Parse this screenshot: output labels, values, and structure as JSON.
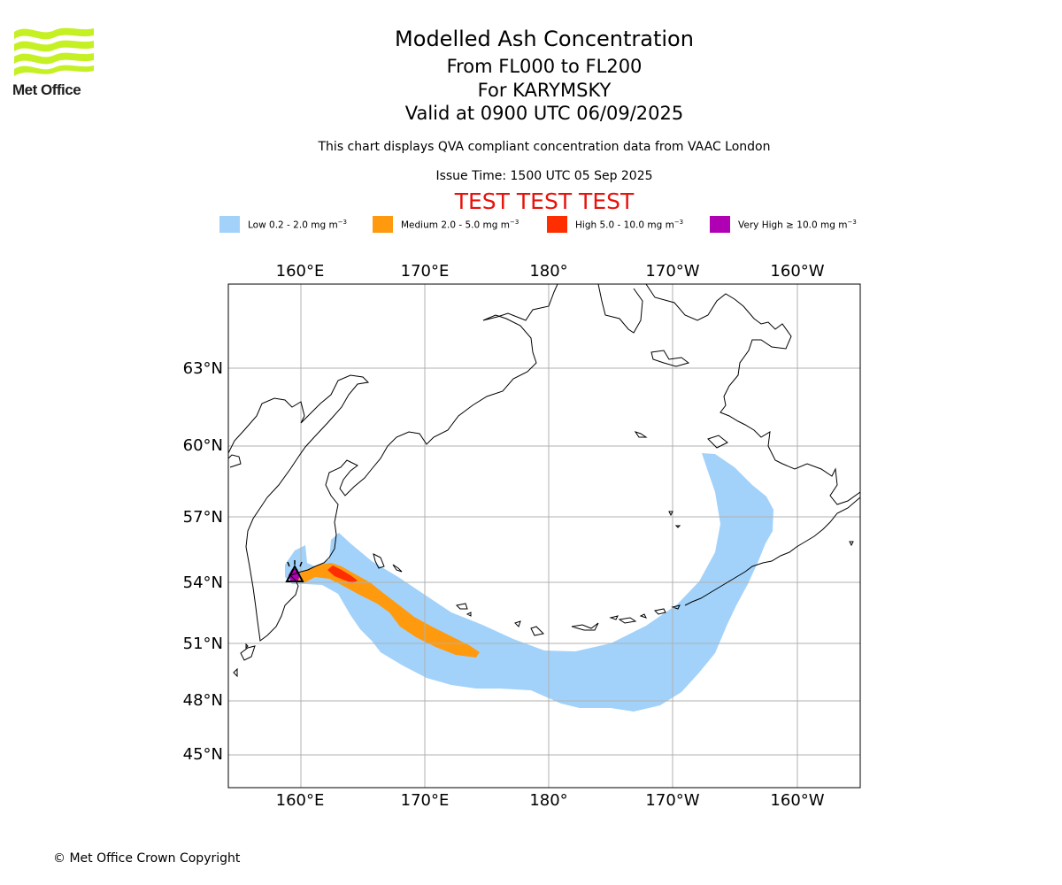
{
  "header": {
    "logo_text": "Met Office",
    "title": "Modelled Ash Concentration",
    "flight_levels": "From FL000 to FL200",
    "volcano": "For KARYMSKY",
    "valid_time": "Valid at 0900 UTC 06/09/2025",
    "description": "This chart displays QVA compliant concentration data from VAAC London",
    "issue_time": "Issue Time: 1500 UTC 05 Sep 2025",
    "test_banner": "TEST TEST TEST"
  },
  "legend": [
    {
      "label": "Low 0.2 - 2.0 mg m",
      "unit_exp": "−3",
      "color": "#a2d2fa"
    },
    {
      "label": "Medium 2.0 - 5.0 mg m",
      "unit_exp": "−3",
      "color": "#ff9a0e"
    },
    {
      "label": "High 5.0 - 10.0 mg m",
      "unit_exp": "−3",
      "color": "#ff2e00"
    },
    {
      "label": "Very High ≥ 10.0 mg m",
      "unit_exp": "−3",
      "color": "#b000b4"
    }
  ],
  "map": {
    "x_ticks": [
      "160°E",
      "170°E",
      "180°",
      "170°W",
      "160°W"
    ],
    "y_ticks": [
      "63°N",
      "60°N",
      "57°N",
      "54°N",
      "51°N",
      "48°N",
      "45°N"
    ],
    "grid_color": "#b0b0b0",
    "coastline_color": "#000000"
  },
  "footer": {
    "copyright": "© Met Office Crown Copyright"
  }
}
